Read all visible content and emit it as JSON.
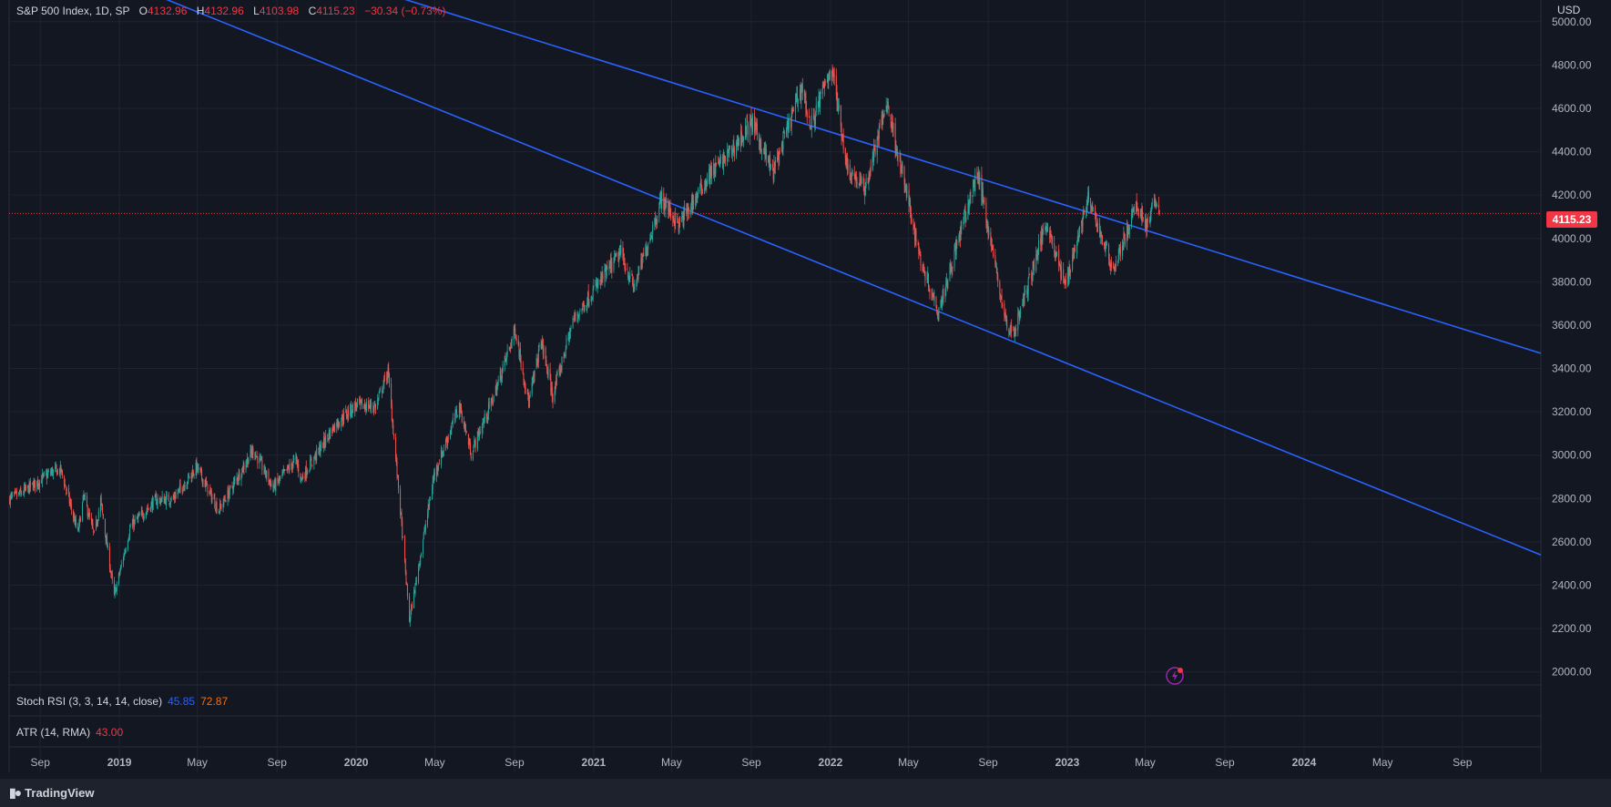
{
  "legend": {
    "symbol": "S&P 500 Index, 1D, SP",
    "o_label": "O",
    "o": "4132.96",
    "h_label": "H",
    "h": "4132.96",
    "l_label": "L",
    "l": "4103.98",
    "c_label": "C",
    "c": "4115.23",
    "change": "−30.34 (−0.73%)"
  },
  "currency": "USD",
  "last_price": "4115.23",
  "indicators": {
    "stoch_rsi": {
      "label": "Stoch RSI (3, 3, 14, 14, close)",
      "k": "45.85",
      "d": "72.87"
    },
    "atr": {
      "label": "ATR (14, RMA)",
      "value": "43.00"
    }
  },
  "brand": "TradingView",
  "colors": {
    "up": "#26a69a",
    "down": "#ef5350",
    "trendline": "#2962ff",
    "price_line": "#f23645"
  },
  "chart_data": {
    "type": "candlestick",
    "interval": "1D",
    "y_ticks": [
      "2000.00",
      "2200.00",
      "2400.00",
      "2600.00",
      "2800.00",
      "3000.00",
      "3200.00",
      "3400.00",
      "3600.00",
      "3800.00",
      "4000.00",
      "4200.00",
      "4400.00",
      "4600.00",
      "4800.00",
      "5000.00"
    ],
    "ylim": [
      1940,
      5100
    ],
    "x_ticks": [
      "Sep",
      "2019",
      "May",
      "Sep",
      "2020",
      "May",
      "Sep",
      "2021",
      "May",
      "Sep",
      "2022",
      "May",
      "Sep",
      "2023",
      "May",
      "Sep",
      "2024",
      "May",
      "Sep"
    ],
    "xlim": [
      "2018-07-15",
      "2024-12-31"
    ],
    "grid": true,
    "price_line": 4115.23,
    "close_series": [
      [
        "2018-07-16",
        2800
      ],
      [
        "2018-08-01",
        2820
      ],
      [
        "2018-08-20",
        2860
      ],
      [
        "2018-09-20",
        2925
      ],
      [
        "2018-10-03",
        2930
      ],
      [
        "2018-10-29",
        2640
      ],
      [
        "2018-11-07",
        2810
      ],
      [
        "2018-11-23",
        2630
      ],
      [
        "2018-12-03",
        2790
      ],
      [
        "2018-12-24",
        2350
      ],
      [
        "2019-01-18",
        2670
      ],
      [
        "2019-02-25",
        2790
      ],
      [
        "2019-03-25",
        2800
      ],
      [
        "2019-04-30",
        2945
      ],
      [
        "2019-06-03",
        2745
      ],
      [
        "2019-07-26",
        3025
      ],
      [
        "2019-08-26",
        2850
      ],
      [
        "2019-09-30",
        2980
      ],
      [
        "2019-10-08",
        2890
      ],
      [
        "2019-11-29",
        3140
      ],
      [
        "2019-12-31",
        3230
      ],
      [
        "2020-01-31",
        3225
      ],
      [
        "2020-02-19",
        3386
      ],
      [
        "2020-03-09",
        2750
      ],
      [
        "2020-03-23",
        2237
      ],
      [
        "2020-04-30",
        2910
      ],
      [
        "2020-06-08",
        3230
      ],
      [
        "2020-06-26",
        3010
      ],
      [
        "2020-07-31",
        3270
      ],
      [
        "2020-09-02",
        3580
      ],
      [
        "2020-09-23",
        3240
      ],
      [
        "2020-10-12",
        3530
      ],
      [
        "2020-10-30",
        3270
      ],
      [
        "2020-11-30",
        3620
      ],
      [
        "2020-12-31",
        3756
      ],
      [
        "2021-02-12",
        3935
      ],
      [
        "2021-03-04",
        3770
      ],
      [
        "2021-04-16",
        4185
      ],
      [
        "2021-05-12",
        4060
      ],
      [
        "2021-06-30",
        4300
      ],
      [
        "2021-07-30",
        4395
      ],
      [
        "2021-09-02",
        4537
      ],
      [
        "2021-10-04",
        4300
      ],
      [
        "2021-11-18",
        4705
      ],
      [
        "2021-12-01",
        4513
      ],
      [
        "2022-01-03",
        4796
      ],
      [
        "2022-01-27",
        4326
      ],
      [
        "2022-02-23",
        4225
      ],
      [
        "2022-03-29",
        4631
      ],
      [
        "2022-05-20",
        3900
      ],
      [
        "2022-06-16",
        3666
      ],
      [
        "2022-08-16",
        4305
      ],
      [
        "2022-09-30",
        3585
      ],
      [
        "2022-10-12",
        3577
      ],
      [
        "2022-11-30",
        4080
      ],
      [
        "2022-12-28",
        3783
      ],
      [
        "2023-02-02",
        4180
      ],
      [
        "2023-03-13",
        3855
      ],
      [
        "2023-04-18",
        4154
      ],
      [
        "2023-05-04",
        4061
      ],
      [
        "2023-05-19",
        4191
      ],
      [
        "2023-05-24",
        4115
      ]
    ],
    "trendlines": [
      {
        "points": [
          [
            "2019-12-03",
            5200
          ],
          [
            "2024-12-31",
            3470
          ]
        ]
      },
      {
        "points": [
          [
            "2018-12-24",
            5200
          ],
          [
            "2024-12-31",
            2540
          ]
        ]
      }
    ]
  }
}
